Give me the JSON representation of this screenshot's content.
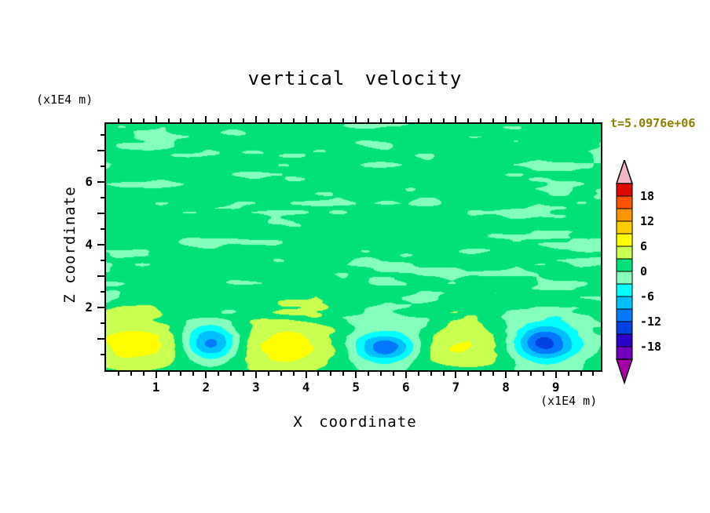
{
  "title": "vertical velocity",
  "timestamp": "t=5.0976e+06",
  "colors": {
    "timestamp": "#8b8000",
    "frame": "#000000",
    "background": "#ffffff"
  },
  "axes": {
    "x_label": "X coordinate",
    "y_label": "Z coordinate",
    "x_unit_label": "(x1E4 m)",
    "y_unit_label": "(x1E4 m)"
  },
  "chart_data": {
    "type": "heatmap",
    "title": "vertical velocity",
    "xlabel": "X coordinate (x1E4 m)",
    "ylabel": "Z coordinate (x1E4 m)",
    "x_range": [
      0,
      9.9
    ],
    "z_range": [
      0,
      7.85
    ],
    "x_major_ticks": [
      1,
      2,
      3,
      4,
      5,
      6,
      7,
      8,
      9
    ],
    "x_minor_step": 0.25,
    "y_major_ticks": [
      1,
      2,
      3,
      4,
      5,
      6,
      7
    ],
    "y_labeled_ticks": [
      2,
      4,
      6
    ],
    "y_minor_step": 0.5,
    "contour_interval": 3,
    "contour_levels": [
      -21,
      -18,
      -15,
      -12,
      -9,
      -6,
      -3,
      0,
      3,
      6,
      9,
      12,
      15,
      18,
      21
    ],
    "colorbar_labels": [
      18,
      12,
      6,
      0,
      -6,
      -12,
      -18
    ],
    "band_colors_high_to_low": [
      "#dc0a00",
      "#ff5200",
      "#ff9400",
      "#ffcc00",
      "#ffff00",
      "#c8ff50",
      "#00e278",
      "#84ffbe",
      "#00ffff",
      "#00c0ff",
      "#0078ff",
      "#0041e1",
      "#2d00c8",
      "#7000be"
    ],
    "arrow_high_color": "#f2b6c6",
    "arrow_low_color": "#aa00aa",
    "field_model": {
      "description": "mostly uniform w between 0 and 3 aloft with streaky mottling dipping to -3..0; alternating updraft cells (yellow, w up to ~9) and narrow downdraft cores (blue, w down to ~-11) along the bottom boundary",
      "background_level": 1.1,
      "noise_amplitude": 2.9,
      "noise_cap": 2.85,
      "noise_scale_x": 1.1,
      "noise_scale_z": 3.2,
      "blobs": [
        {
          "x": 0.7,
          "z": 0.85,
          "amp": 7.2,
          "sx": 0.85,
          "sz": 0.6
        },
        {
          "x": 3.6,
          "z": 0.85,
          "amp": 7.6,
          "sx": 0.95,
          "sz": 0.65
        },
        {
          "x": 7.0,
          "z": 0.8,
          "amp": 6.8,
          "sx": 0.8,
          "sz": 0.55
        },
        {
          "x": 2.1,
          "z": 0.85,
          "amp": -12.0,
          "sx": 0.38,
          "sz": 0.38
        },
        {
          "x": 5.6,
          "z": 0.72,
          "amp": -10.5,
          "sx": 0.42,
          "sz": 0.33
        },
        {
          "x": 8.75,
          "z": 0.85,
          "amp": -12.0,
          "sx": 0.42,
          "sz": 0.4
        },
        {
          "x": 2.1,
          "z": 1.0,
          "amp": -3.2,
          "sx": 0.8,
          "sz": 0.7
        },
        {
          "x": 5.6,
          "z": 0.95,
          "amp": -4.2,
          "sx": 1.0,
          "sz": 0.75
        },
        {
          "x": 8.75,
          "z": 1.0,
          "amp": -3.0,
          "sx": 0.8,
          "sz": 0.65
        }
      ]
    }
  }
}
